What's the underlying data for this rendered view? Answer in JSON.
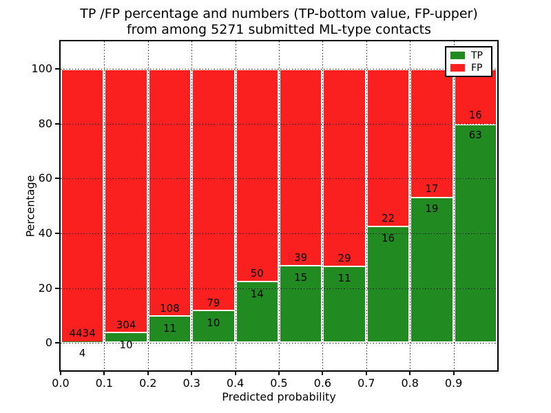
{
  "figure": {
    "title_line1": "TP /FP percentage and numbers (TP-bottom value, FP-upper)",
    "title_line2": "from among 5271 submitted ML-type contacts",
    "xlabel": "Predicted probability",
    "ylabel": "Percentage"
  },
  "legend": {
    "items": [
      {
        "label": "TP",
        "color": "#218b21"
      },
      {
        "label": "FP",
        "color": "#fa2020"
      }
    ]
  },
  "chart_data": {
    "type": "bar",
    "stacked": true,
    "normalized_to_percent": 100,
    "title": "TP /FP percentage and numbers (TP-bottom value, FP-upper)\nfrom among 5271 submitted ML-type contacts",
    "xlabel": "Predicted probability",
    "ylabel": "Percentage",
    "total_contacts": 5271,
    "bin_width": 0.1,
    "categories": [
      "0.0-0.1",
      "0.1-0.2",
      "0.2-0.3",
      "0.3-0.4",
      "0.4-0.5",
      "0.5-0.6",
      "0.6-0.7",
      "0.7-0.8",
      "0.8-0.9",
      "0.9-1.0"
    ],
    "series": [
      {
        "name": "TP",
        "color": "#218b21",
        "counts": [
          4,
          10,
          11,
          10,
          14,
          15,
          11,
          16,
          19,
          63
        ]
      },
      {
        "name": "FP",
        "color": "#fa2020",
        "counts": [
          4434,
          304,
          108,
          79,
          50,
          39,
          29,
          22,
          17,
          16
        ]
      }
    ],
    "tp_percent": [
      0.09,
      3.18,
      9.24,
      11.24,
      21.88,
      27.78,
      27.5,
      42.11,
      52.78,
      79.75
    ],
    "xticks": [
      "0.0",
      "0.1",
      "0.2",
      "0.3",
      "0.4",
      "0.5",
      "0.6",
      "0.7",
      "0.8",
      "0.9"
    ],
    "yticks": [
      0,
      20,
      40,
      60,
      80,
      100
    ],
    "xlim": [
      0.0,
      1.0
    ],
    "ylim": [
      -10,
      110
    ],
    "grid": "dotted",
    "grid_on_top": true,
    "bar_edge_color": "#ffffff",
    "legend_position": "upper right"
  }
}
